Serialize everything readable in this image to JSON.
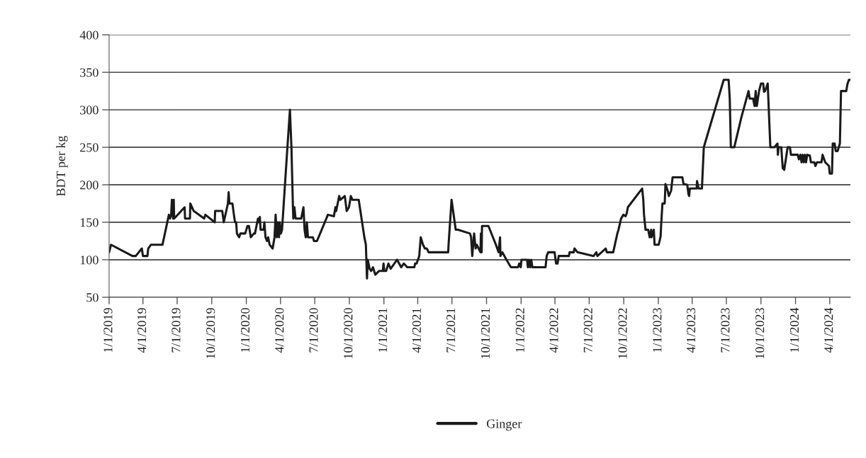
{
  "chart_data": {
    "type": "line",
    "ylabel": "BDT per kg",
    "xlim": [
      "2019-01-01",
      "2024-05-26"
    ],
    "ylim": [
      50,
      400
    ],
    "yticks": [
      50,
      100,
      150,
      200,
      250,
      300,
      350,
      400
    ],
    "xticks": [
      {
        "value": "2019-01-01",
        "label": "1/1/2019"
      },
      {
        "value": "2019-04-01",
        "label": "4/1/2019"
      },
      {
        "value": "2019-07-01",
        "label": "7/1/2019"
      },
      {
        "value": "2019-10-01",
        "label": "10/1/2019"
      },
      {
        "value": "2020-01-01",
        "label": "1/1/2020"
      },
      {
        "value": "2020-04-01",
        "label": "4/1/2020"
      },
      {
        "value": "2020-07-01",
        "label": "7/1/2020"
      },
      {
        "value": "2020-10-01",
        "label": "10/1/2020"
      },
      {
        "value": "2021-01-01",
        "label": "1/1/2021"
      },
      {
        "value": "2021-04-01",
        "label": "4/1/2021"
      },
      {
        "value": "2021-07-01",
        "label": "7/1/2021"
      },
      {
        "value": "2021-10-01",
        "label": "10/1/2021"
      },
      {
        "value": "2022-01-01",
        "label": "1/1/2022"
      },
      {
        "value": "2022-04-01",
        "label": "4/1/2022"
      },
      {
        "value": "2022-07-01",
        "label": "7/1/2022"
      },
      {
        "value": "2022-10-01",
        "label": "10/1/2022"
      },
      {
        "value": "2023-01-01",
        "label": "1/1/2023"
      },
      {
        "value": "2023-04-01",
        "label": "4/1/2023"
      },
      {
        "value": "2023-07-01",
        "label": "7/1/2023"
      },
      {
        "value": "2023-10-01",
        "label": "10/1/2023"
      },
      {
        "value": "2024-01-01",
        "label": "1/1/2024"
      },
      {
        "value": "2024-04-01",
        "label": "4/1/2024"
      }
    ],
    "grid": "y",
    "legend": "bottom",
    "marker": "none",
    "line_style": "solid",
    "series": [
      {
        "name": "Ginger",
        "color": "#1a1a1a",
        "x": [
          "2019-01-01",
          "2019-01-06",
          "2019-03-04",
          "2019-03-13",
          "2019-03-29",
          "2019-04-01",
          "2019-04-13",
          "2019-04-15",
          "2019-04-22",
          "2019-05-23",
          "2019-06-09",
          "2019-06-12",
          "2019-06-15",
          "2019-06-17",
          "2019-06-20",
          "2019-06-22",
          "2019-06-23",
          "2019-07-21",
          "2019-07-22",
          "2019-08-04",
          "2019-08-05",
          "2019-08-14",
          "2019-09-11",
          "2019-09-14",
          "2019-10-09",
          "2019-10-10",
          "2019-10-29",
          "2019-11-02",
          "2019-11-13",
          "2019-11-15",
          "2019-11-17",
          "2019-11-25",
          "2019-11-29",
          "2019-12-02",
          "2019-12-05",
          "2019-12-07",
          "2019-12-13",
          "2019-12-16",
          "2019-12-29",
          "2020-01-01",
          "2020-01-04",
          "2020-01-08",
          "2020-01-13",
          "2020-01-21",
          "2020-01-24",
          "2020-02-01",
          "2020-02-03",
          "2020-02-06",
          "2020-02-08",
          "2020-02-16",
          "2020-02-18",
          "2020-02-21",
          "2020-02-25",
          "2020-02-28",
          "2020-03-03",
          "2020-03-11",
          "2020-03-16",
          "2020-03-19",
          "2020-03-22",
          "2020-03-25",
          "2020-03-28",
          "2020-03-30",
          "2020-04-02",
          "2020-04-05",
          "2020-04-18",
          "2020-04-26",
          "2020-04-30",
          "2020-05-04",
          "2020-05-05",
          "2020-05-08",
          "2020-05-11",
          "2020-05-26",
          "2020-06-01",
          "2020-06-04",
          "2020-06-07",
          "2020-06-10",
          "2020-06-13",
          "2020-06-26",
          "2020-06-29",
          "2020-07-07",
          "2020-08-05",
          "2020-08-21",
          "2020-08-25",
          "2020-08-27",
          "2020-09-02",
          "2020-09-04",
          "2020-09-07",
          "2020-09-19",
          "2020-09-24",
          "2020-09-30",
          "2020-10-05",
          "2020-10-09",
          "2020-10-26",
          "2020-11-07",
          "2020-11-10",
          "2020-11-14",
          "2020-11-17",
          "2020-11-19",
          "2020-11-24",
          "2020-11-28",
          "2020-12-03",
          "2020-12-09",
          "2020-12-19",
          "2020-12-29",
          "2020-12-31",
          "2021-01-02",
          "2021-01-07",
          "2021-01-13",
          "2021-01-19",
          "2021-02-05",
          "2021-02-16",
          "2021-02-23",
          "2021-03-04",
          "2021-03-23",
          "2021-03-25",
          "2021-03-29",
          "2021-04-05",
          "2021-04-09",
          "2021-04-15",
          "2021-04-20",
          "2021-04-25",
          "2021-04-30",
          "2021-06-21",
          "2021-06-22",
          "2021-06-30",
          "2021-07-11",
          "2021-07-17",
          "2021-08-18",
          "2021-08-21",
          "2021-08-24",
          "2021-08-29",
          "2021-09-02",
          "2021-09-05",
          "2021-09-10",
          "2021-09-15",
          "2021-09-16",
          "2021-09-18",
          "2021-09-19",
          "2021-10-06",
          "2021-10-26",
          "2021-11-02",
          "2021-11-06",
          "2021-11-07",
          "2021-11-12",
          "2021-11-23",
          "2021-12-05",
          "2021-12-24",
          "2021-12-27",
          "2021-12-31",
          "2022-01-02",
          "2022-01-17",
          "2022-01-19",
          "2022-01-22",
          "2022-01-25",
          "2022-01-28",
          "2022-01-31",
          "2022-03-07",
          "2022-03-10",
          "2022-03-14",
          "2022-03-31",
          "2022-04-04",
          "2022-04-08",
          "2022-04-11",
          "2022-05-08",
          "2022-05-10",
          "2022-05-21",
          "2022-05-23",
          "2022-05-31",
          "2022-07-13",
          "2022-07-20",
          "2022-07-23",
          "2022-08-14",
          "2022-08-17",
          "2022-09-03",
          "2022-09-14",
          "2022-09-17",
          "2022-09-24",
          "2022-09-30",
          "2022-10-06",
          "2022-10-09",
          "2022-10-12",
          "2022-11-19",
          "2022-11-22",
          "2022-11-24",
          "2022-11-28",
          "2022-12-05",
          "2022-12-09",
          "2022-12-13",
          "2022-12-14",
          "2022-12-20",
          "2022-12-22",
          "2023-01-02",
          "2023-01-07",
          "2023-01-09",
          "2023-01-12",
          "2023-01-18",
          "2023-01-20",
          "2023-01-26",
          "2023-01-29",
          "2023-02-04",
          "2023-02-08",
          "2023-03-06",
          "2023-03-09",
          "2023-03-19",
          "2023-03-22",
          "2023-03-24",
          "2023-03-26",
          "2023-04-01",
          "2023-04-13",
          "2023-04-14",
          "2023-04-18",
          "2023-04-27",
          "2023-05-02",
          "2023-06-24",
          "2023-07-07",
          "2023-07-10",
          "2023-07-13",
          "2023-07-22",
          "2023-08-10",
          "2023-08-29",
          "2023-09-01",
          "2023-09-10",
          "2023-09-14",
          "2023-09-17",
          "2023-09-20",
          "2023-09-26",
          "2023-10-01",
          "2023-10-07",
          "2023-10-09",
          "2023-10-12",
          "2023-10-19",
          "2023-10-26",
          "2023-11-06",
          "2023-11-14",
          "2023-11-15",
          "2023-11-17",
          "2023-11-24",
          "2023-11-28",
          "2023-12-02",
          "2023-12-11",
          "2023-12-17",
          "2023-12-20",
          "2024-01-07",
          "2024-01-10",
          "2024-01-14",
          "2024-01-17",
          "2024-01-20",
          "2024-01-23",
          "2024-01-26",
          "2024-01-29",
          "2024-02-01",
          "2024-02-08",
          "2024-02-11",
          "2024-02-20",
          "2024-02-23",
          "2024-02-27",
          "2024-03-10",
          "2024-03-13",
          "2024-03-20",
          "2024-03-30",
          "2024-04-01",
          "2024-04-07",
          "2024-04-09",
          "2024-04-14",
          "2024-04-17",
          "2024-04-22",
          "2024-04-28",
          "2024-05-01",
          "2024-05-15",
          "2024-05-18",
          "2024-05-22",
          "2024-05-26"
        ],
        "values": [
          110,
          120,
          105,
          105,
          115,
          105,
          105,
          115,
          120,
          120,
          160,
          155,
          160,
          180,
          155,
          180,
          155,
          170,
          155,
          155,
          175,
          165,
          155,
          160,
          150,
          165,
          165,
          150,
          175,
          190,
          175,
          175,
          160,
          150,
          150,
          135,
          130,
          135,
          135,
          140,
          145,
          145,
          130,
          135,
          135,
          155,
          150,
          157,
          140,
          140,
          150,
          130,
          125,
          130,
          120,
          115,
          130,
          160,
          130,
          150,
          130,
          150,
          135,
          140,
          240,
          300,
          250,
          170,
          155,
          170,
          155,
          155,
          170,
          140,
          130,
          150,
          130,
          130,
          125,
          125,
          160,
          158,
          170,
          165,
          180,
          185,
          180,
          185,
          165,
          170,
          185,
          180,
          180,
          140,
          130,
          120,
          75,
          100,
          88,
          85,
          90,
          80,
          85,
          85,
          95,
          85,
          85,
          95,
          88,
          100,
          90,
          95,
          90,
          90,
          95,
          95,
          105,
          130,
          120,
          115,
          115,
          110,
          110,
          120,
          180,
          140,
          140,
          135,
          130,
          105,
          135,
          115,
          120,
          115,
          110,
          135,
          110,
          145,
          145,
          120,
          110,
          130,
          105,
          110,
          100,
          90,
          90,
          95,
          90,
          100,
          100,
          90,
          100,
          90,
          100,
          90,
          90,
          105,
          110,
          110,
          95,
          95,
          105,
          105,
          110,
          110,
          115,
          110,
          105,
          110,
          105,
          115,
          110,
          110,
          135,
          140,
          155,
          160,
          158,
          162,
          170,
          195,
          180,
          160,
          140,
          140,
          130,
          140,
          130,
          140,
          120,
          120,
          131,
          151,
          175,
          175,
          201,
          192,
          185,
          192,
          210,
          210,
          201,
          200,
          188,
          185,
          195,
          195,
          195,
          205,
          195,
          195,
          250,
          340,
          340,
          315,
          250,
          250,
          290,
          325,
          315,
          315,
          305,
          325,
          305,
          325,
          335,
          335,
          324,
          325,
          335,
          250,
          250,
          255,
          240,
          250,
          250,
          222,
          220,
          250,
          250,
          240,
          240,
          234,
          240,
          230,
          240,
          230,
          240,
          230,
          240,
          239,
          230,
          230,
          225,
          230,
          230,
          240,
          230,
          225,
          215,
          215,
          255,
          255,
          245,
          245,
          255,
          325,
          325,
          334,
          340,
          340
        ]
      }
    ]
  }
}
